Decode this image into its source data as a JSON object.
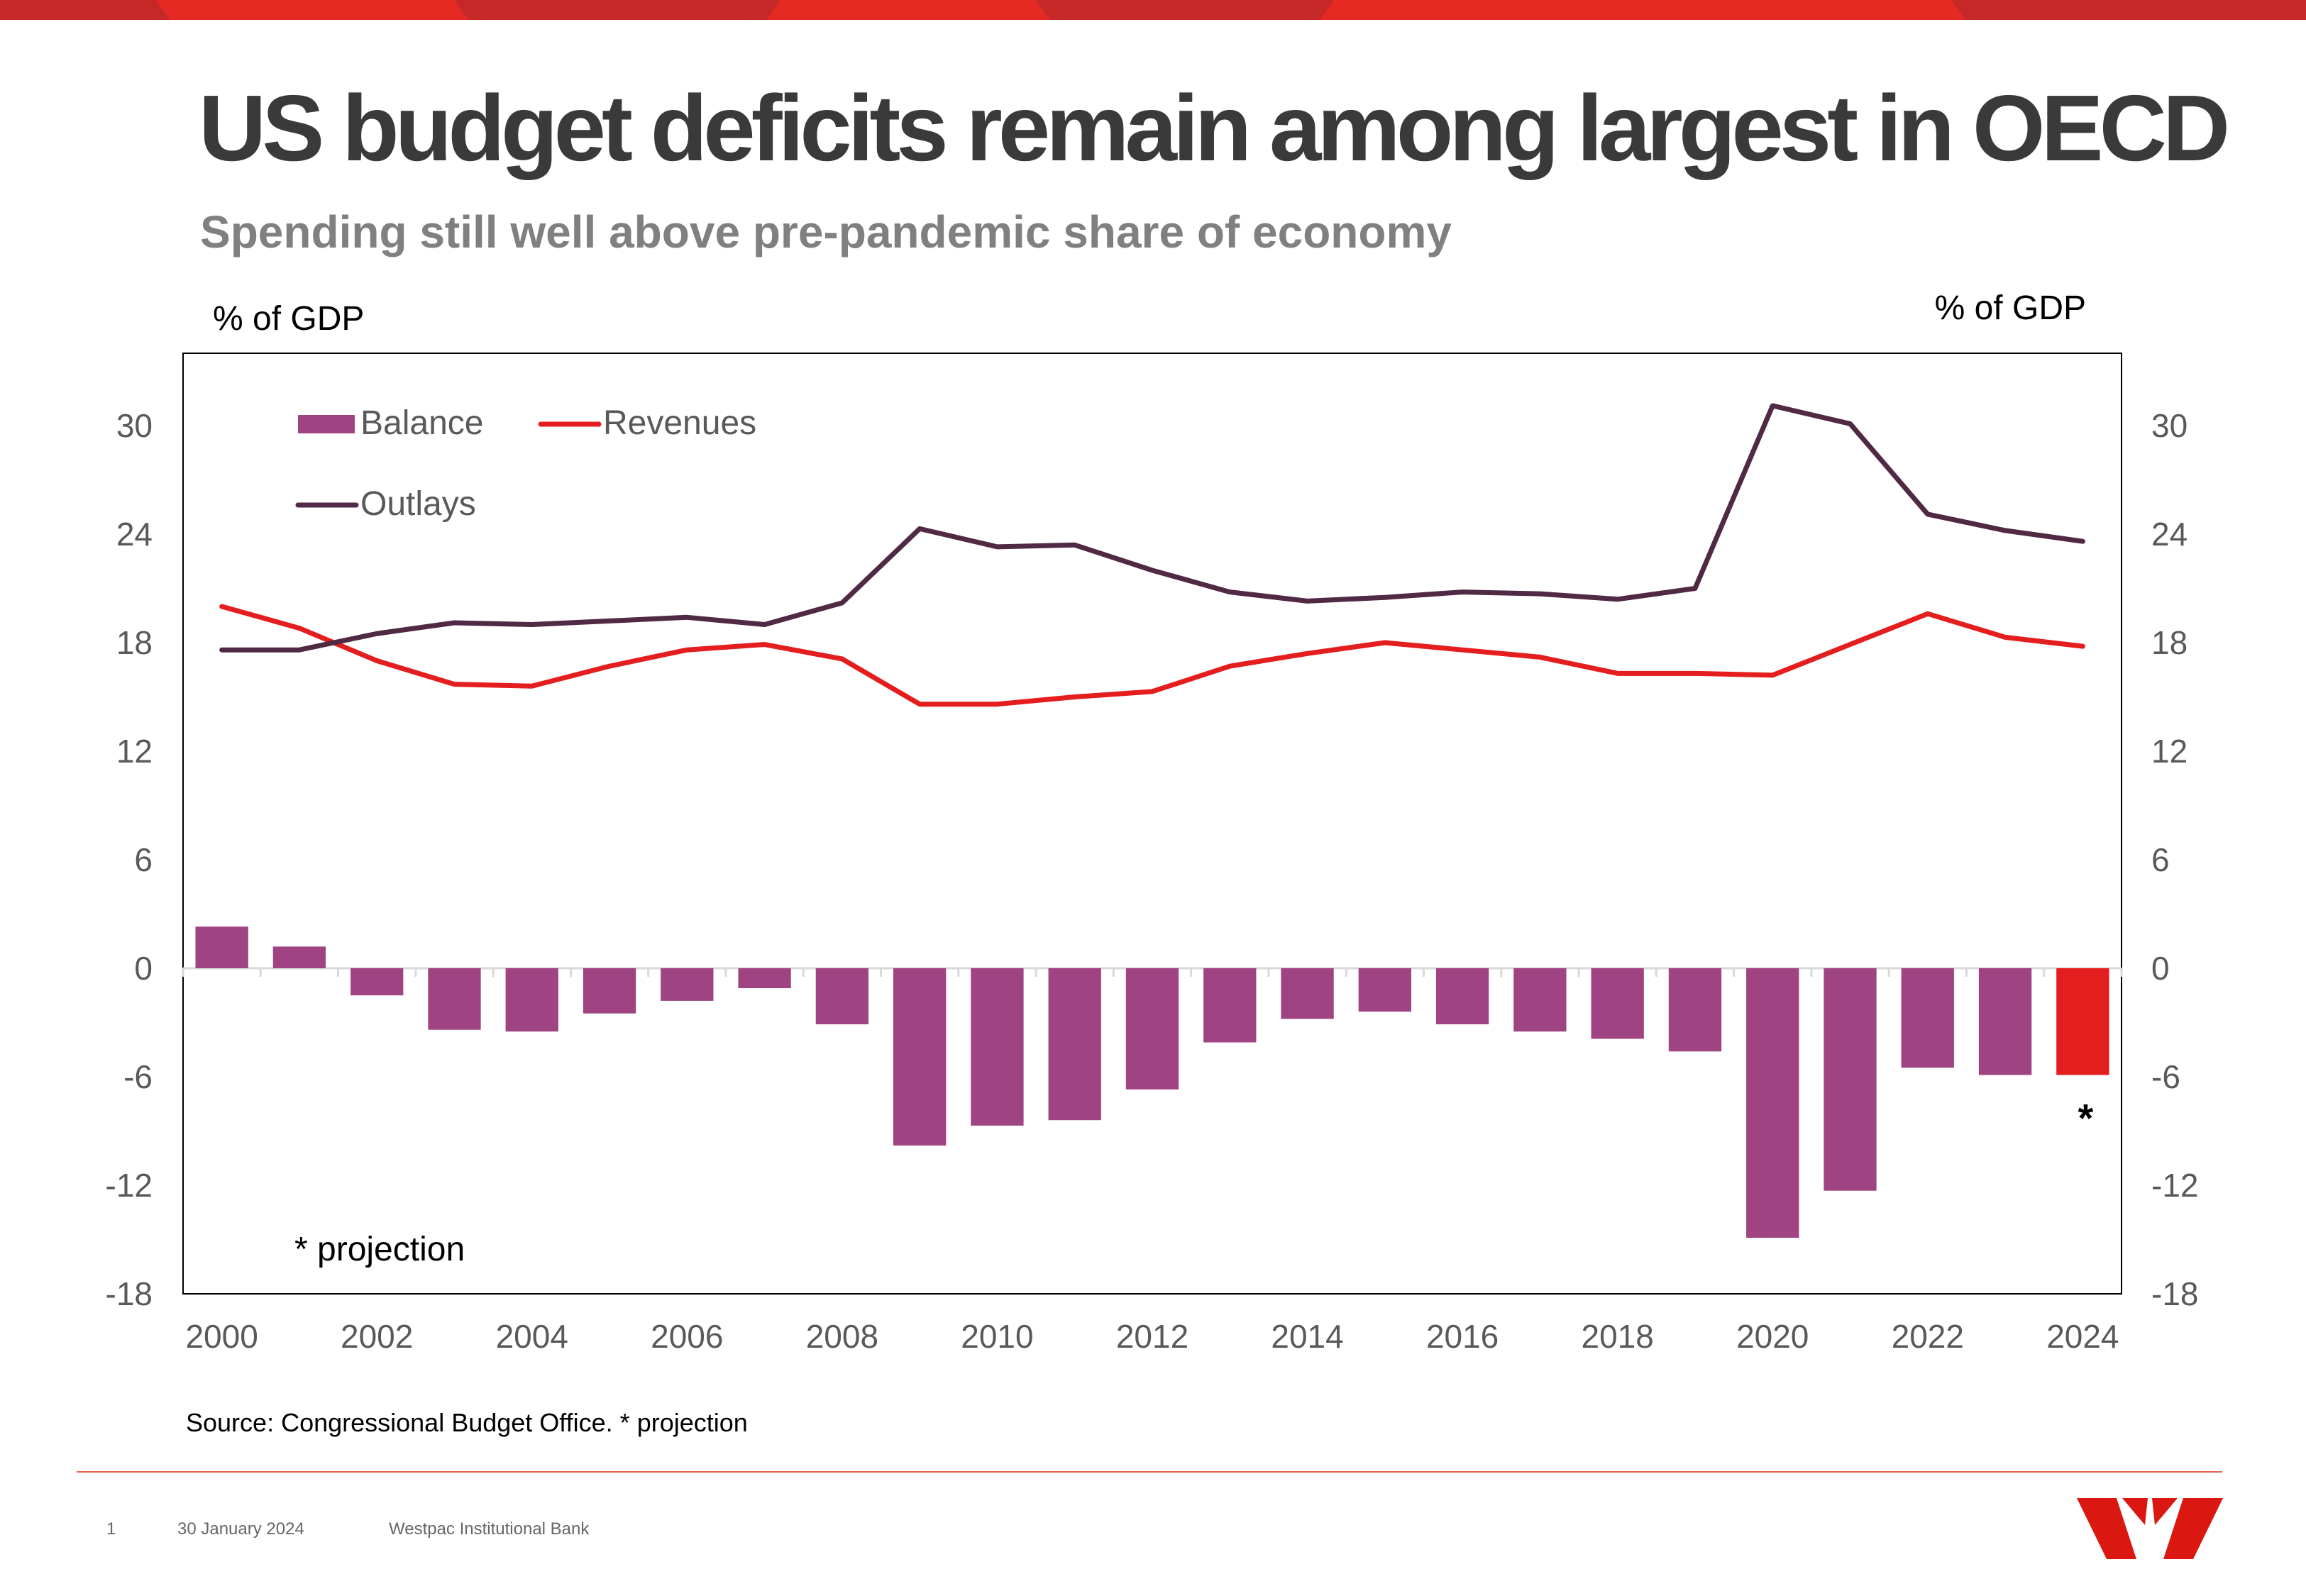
{
  "header": {
    "title": "US budget deficits remain among largest in OECD",
    "subtitle": "Spending still well above pre-pandemic share of economy"
  },
  "colors": {
    "band": "#e52a24",
    "band_dark": "#c62828",
    "balance": "#a04383",
    "balance_projection": "#e41e1e",
    "revenues": "#e41e1e",
    "outlays": "#502945",
    "footer_line": "#e8604f",
    "logo": "#da1710"
  },
  "chart_data": {
    "type": "bar",
    "left_axis_label": "% of GDP",
    "right_axis_label": "% of GDP",
    "x": [
      2000,
      2001,
      2002,
      2003,
      2004,
      2005,
      2006,
      2007,
      2008,
      2009,
      2010,
      2011,
      2012,
      2013,
      2014,
      2015,
      2016,
      2017,
      2018,
      2019,
      2020,
      2021,
      2022,
      2023,
      2024
    ],
    "x_tick_labels": [
      "2000",
      "2002",
      "2004",
      "2006",
      "2008",
      "2010",
      "2012",
      "2014",
      "2016",
      "2018",
      "2020",
      "2022",
      "2024"
    ],
    "y_ticks": [
      30,
      24,
      18,
      12,
      6,
      0,
      -6,
      -12,
      -18
    ],
    "ylim": [
      -18,
      34
    ],
    "legend_placement": "top-left",
    "series": [
      {
        "name": "Balance",
        "type": "bar",
        "values": [
          2.3,
          1.2,
          -1.5,
          -3.4,
          -3.5,
          -2.5,
          -1.8,
          -1.1,
          -3.1,
          -9.8,
          -8.7,
          -8.4,
          -6.7,
          -4.1,
          -2.8,
          -2.4,
          -3.1,
          -3.5,
          -3.9,
          -4.6,
          -14.9,
          -12.3,
          -5.5,
          -5.9,
          -5.9
        ]
      },
      {
        "name": "Revenues",
        "type": "line",
        "values": [
          20.0,
          18.8,
          17.0,
          15.7,
          15.6,
          16.7,
          17.6,
          17.9,
          17.1,
          14.6,
          14.6,
          15.0,
          15.3,
          16.7,
          17.4,
          18.0,
          17.6,
          17.2,
          16.3,
          16.3,
          16.2,
          17.9,
          19.6,
          18.3,
          17.8
        ]
      },
      {
        "name": "Outlays",
        "type": "line",
        "values": [
          17.6,
          17.6,
          18.5,
          19.1,
          19.0,
          19.2,
          19.4,
          19.0,
          20.2,
          24.3,
          23.3,
          23.4,
          22.0,
          20.8,
          20.3,
          20.5,
          20.8,
          20.7,
          20.4,
          21.0,
          31.1,
          30.1,
          25.1,
          24.2,
          23.6
        ]
      }
    ],
    "projection_marker": "*",
    "annotation": "* projection"
  },
  "source": "Source: Congressional Budget Office. * projection",
  "footer": {
    "page_number": "1",
    "date": "30 January 2024",
    "organisation": "Westpac Institutional Bank"
  }
}
